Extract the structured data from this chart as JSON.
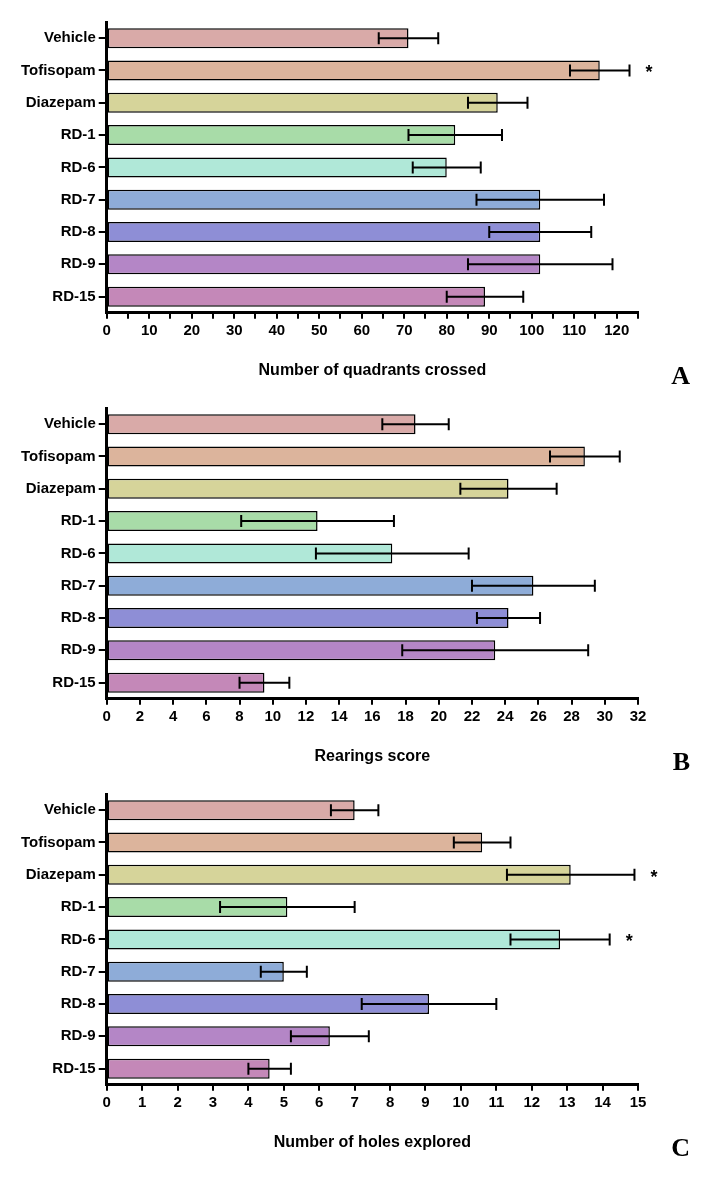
{
  "chart_data": [
    {
      "type": "bar",
      "orientation": "horizontal",
      "categories": [
        "Vehicle",
        "Tofisopam",
        "Diazepam",
        "RD-1",
        "RD-6",
        "RD-7",
        "RD-8",
        "RD-9",
        "RD-15"
      ],
      "values": [
        71,
        116,
        92,
        82,
        80,
        102,
        102,
        102,
        89
      ],
      "errors": [
        7,
        7,
        7,
        11,
        8,
        15,
        12,
        17,
        9
      ],
      "colors": [
        "#d9aaa8",
        "#dcb49c",
        "#d6d49a",
        "#a8dca8",
        "#b0e8d8",
        "#8eacd8",
        "#8e8ed6",
        "#b486c6",
        "#c488b8"
      ],
      "xlabel": "Number of quadrants crossed",
      "xlim": [
        0,
        125
      ],
      "xticks": [
        0,
        {
          "value": 5,
          "label": null
        },
        10,
        {
          "value": 15,
          "label": null
        },
        20,
        {
          "value": 25,
          "label": null
        },
        30,
        {
          "value": 35,
          "label": null
        },
        40,
        {
          "value": 45,
          "label": null
        },
        50,
        {
          "value": 55,
          "label": null
        },
        60,
        {
          "value": 65,
          "label": null
        },
        70,
        {
          "value": 75,
          "label": null
        },
        80,
        {
          "value": 85,
          "label": null
        },
        90,
        {
          "value": 95,
          "label": null
        },
        100,
        {
          "value": 105,
          "label": null
        },
        110,
        {
          "value": 115,
          "label": null
        },
        120,
        {
          "value": 125,
          "label": null
        }
      ],
      "grid": false,
      "legend": false,
      "annotations": [
        {
          "text": "*",
          "x": 123,
          "y": "Tofisopam"
        },
        "A"
      ]
    },
    {
      "type": "bar",
      "orientation": "horizontal",
      "categories": [
        "Vehicle",
        "Tofisopam",
        "Diazepam",
        "RD-1",
        "RD-6",
        "RD-7",
        "RD-8",
        "RD-9",
        "RD-15"
      ],
      "values": [
        18.6,
        28.8,
        24.2,
        12.7,
        17.2,
        25.7,
        24.2,
        23.4,
        9.5
      ],
      "errors": [
        2,
        2.1,
        2.9,
        4.6,
        4.6,
        3.7,
        1.9,
        5.6,
        1.5
      ],
      "colors": [
        "#d9aaa8",
        "#dcb49c",
        "#d6d49a",
        "#a8dca8",
        "#b0e8d8",
        "#8eacd8",
        "#8e8ed6",
        "#b486c6",
        "#c488b8"
      ],
      "xlabel": "Rearings score",
      "xlim": [
        0,
        32
      ],
      "xticks": [
        0,
        2,
        4,
        6,
        8,
        10,
        12,
        14,
        16,
        18,
        20,
        22,
        24,
        26,
        28,
        30,
        32
      ],
      "grid": false,
      "legend": false,
      "annotations": [
        "B"
      ]
    },
    {
      "type": "bar",
      "orientation": "horizontal",
      "categories": [
        "Vehicle",
        "Tofisopam",
        "Diazepam",
        "RD-1",
        "RD-6",
        "RD-7",
        "RD-8",
        "RD-9",
        "RD-15"
      ],
      "values": [
        7.0,
        10.6,
        13.1,
        5.1,
        12.8,
        5.0,
        9.1,
        6.3,
        4.6
      ],
      "errors": [
        0.67,
        0.8,
        1.8,
        1.9,
        1.4,
        0.65,
        1.9,
        1.1,
        0.6
      ],
      "colors": [
        "#d9aaa8",
        "#dcb49c",
        "#d6d49a",
        "#a8dca8",
        "#b0e8d8",
        "#8eacd8",
        "#8e8ed6",
        "#b486c6",
        "#c488b8"
      ],
      "xlabel": "Number of holes explored",
      "xlim": [
        0,
        15
      ],
      "xticks": [
        0,
        1,
        2,
        3,
        4,
        5,
        6,
        7,
        8,
        9,
        10,
        11,
        12,
        13,
        14,
        15
      ],
      "grid": false,
      "legend": false,
      "annotations": [
        {
          "text": "*",
          "x": 14.9,
          "y": "Diazepam"
        },
        {
          "text": "*",
          "x": 14.2,
          "y": "RD-6"
        },
        "C"
      ]
    }
  ]
}
